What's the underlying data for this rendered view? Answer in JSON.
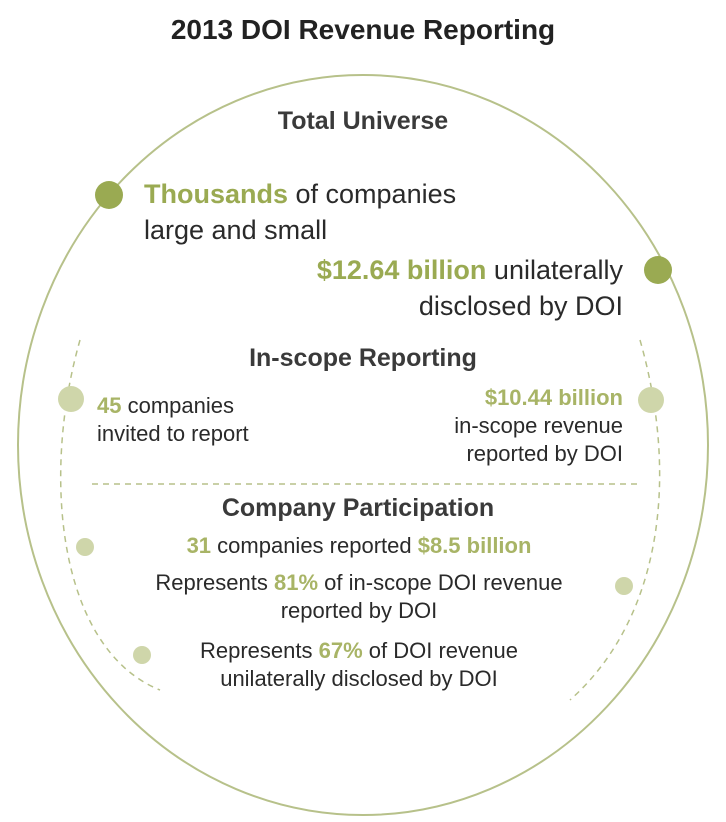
{
  "title": "2013 DOI Revenue Reporting",
  "colors": {
    "accent_dark": "#9aaa52",
    "accent_light": "#cfd6aa",
    "text": "#2a2a2a",
    "outline": "#b7c18a"
  },
  "total_universe": {
    "heading": "Total Universe",
    "companies": {
      "highlight": "Thousands",
      "line1_rest": " of companies",
      "line2": "large and small"
    },
    "revenue": {
      "highlight": "$12.64 billion",
      "line1_rest": " unilaterally",
      "line2": "disclosed by DOI"
    }
  },
  "in_scope": {
    "heading": "In-scope Reporting",
    "companies": {
      "highlight": "45",
      "line1_rest": " companies",
      "line2": "invited to report"
    },
    "revenue": {
      "highlight": "$10.44 billion",
      "line2": "in-scope revenue",
      "line3": "reported by DOI"
    }
  },
  "participation": {
    "heading": "Company Participation",
    "reported": {
      "highlight1": "31",
      "mid": " companies reported ",
      "highlight2": "$8.5 billion"
    },
    "share_in_scope": {
      "pre": "Represents ",
      "highlight": "81%",
      "post": " of in-scope DOI revenue",
      "line2": "reported by DOI"
    },
    "share_total": {
      "pre": "Represents ",
      "highlight": "67%",
      "post": " of DOI revenue",
      "line2": "unilaterally disclosed by DOI"
    }
  }
}
